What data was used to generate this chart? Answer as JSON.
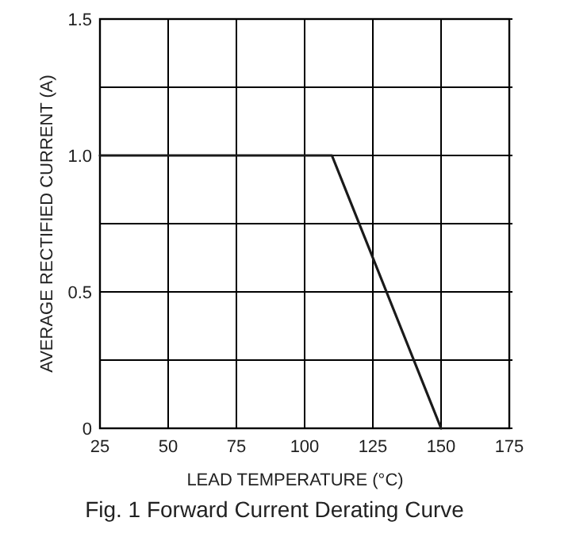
{
  "chart_data": {
    "type": "line",
    "title": "Fig. 1  Forward Current Derating Curve",
    "xlabel": "LEAD  TEMPERATURE (°C)",
    "ylabel": "AVERAGE RECTIFIED CURRENT (A)",
    "x": [
      25,
      110,
      150
    ],
    "series": [
      {
        "color": "#1a1a1a",
        "values": [
          1.0,
          1.0,
          0
        ]
      }
    ],
    "xlim": [
      25,
      175
    ],
    "xticks": [
      25,
      50,
      75,
      100,
      125,
      150,
      175
    ],
    "ylim": [
      0,
      1.5
    ],
    "yticks": [
      0,
      {
        "value": 0.25,
        "label": null
      },
      0.5,
      {
        "value": 0.75,
        "label": null
      },
      {
        "value": 1.0,
        "label": "1.0"
      },
      {
        "value": 1.25,
        "label": null
      },
      1.5
    ],
    "grid": true,
    "marker": "none",
    "line_style": "solid"
  }
}
